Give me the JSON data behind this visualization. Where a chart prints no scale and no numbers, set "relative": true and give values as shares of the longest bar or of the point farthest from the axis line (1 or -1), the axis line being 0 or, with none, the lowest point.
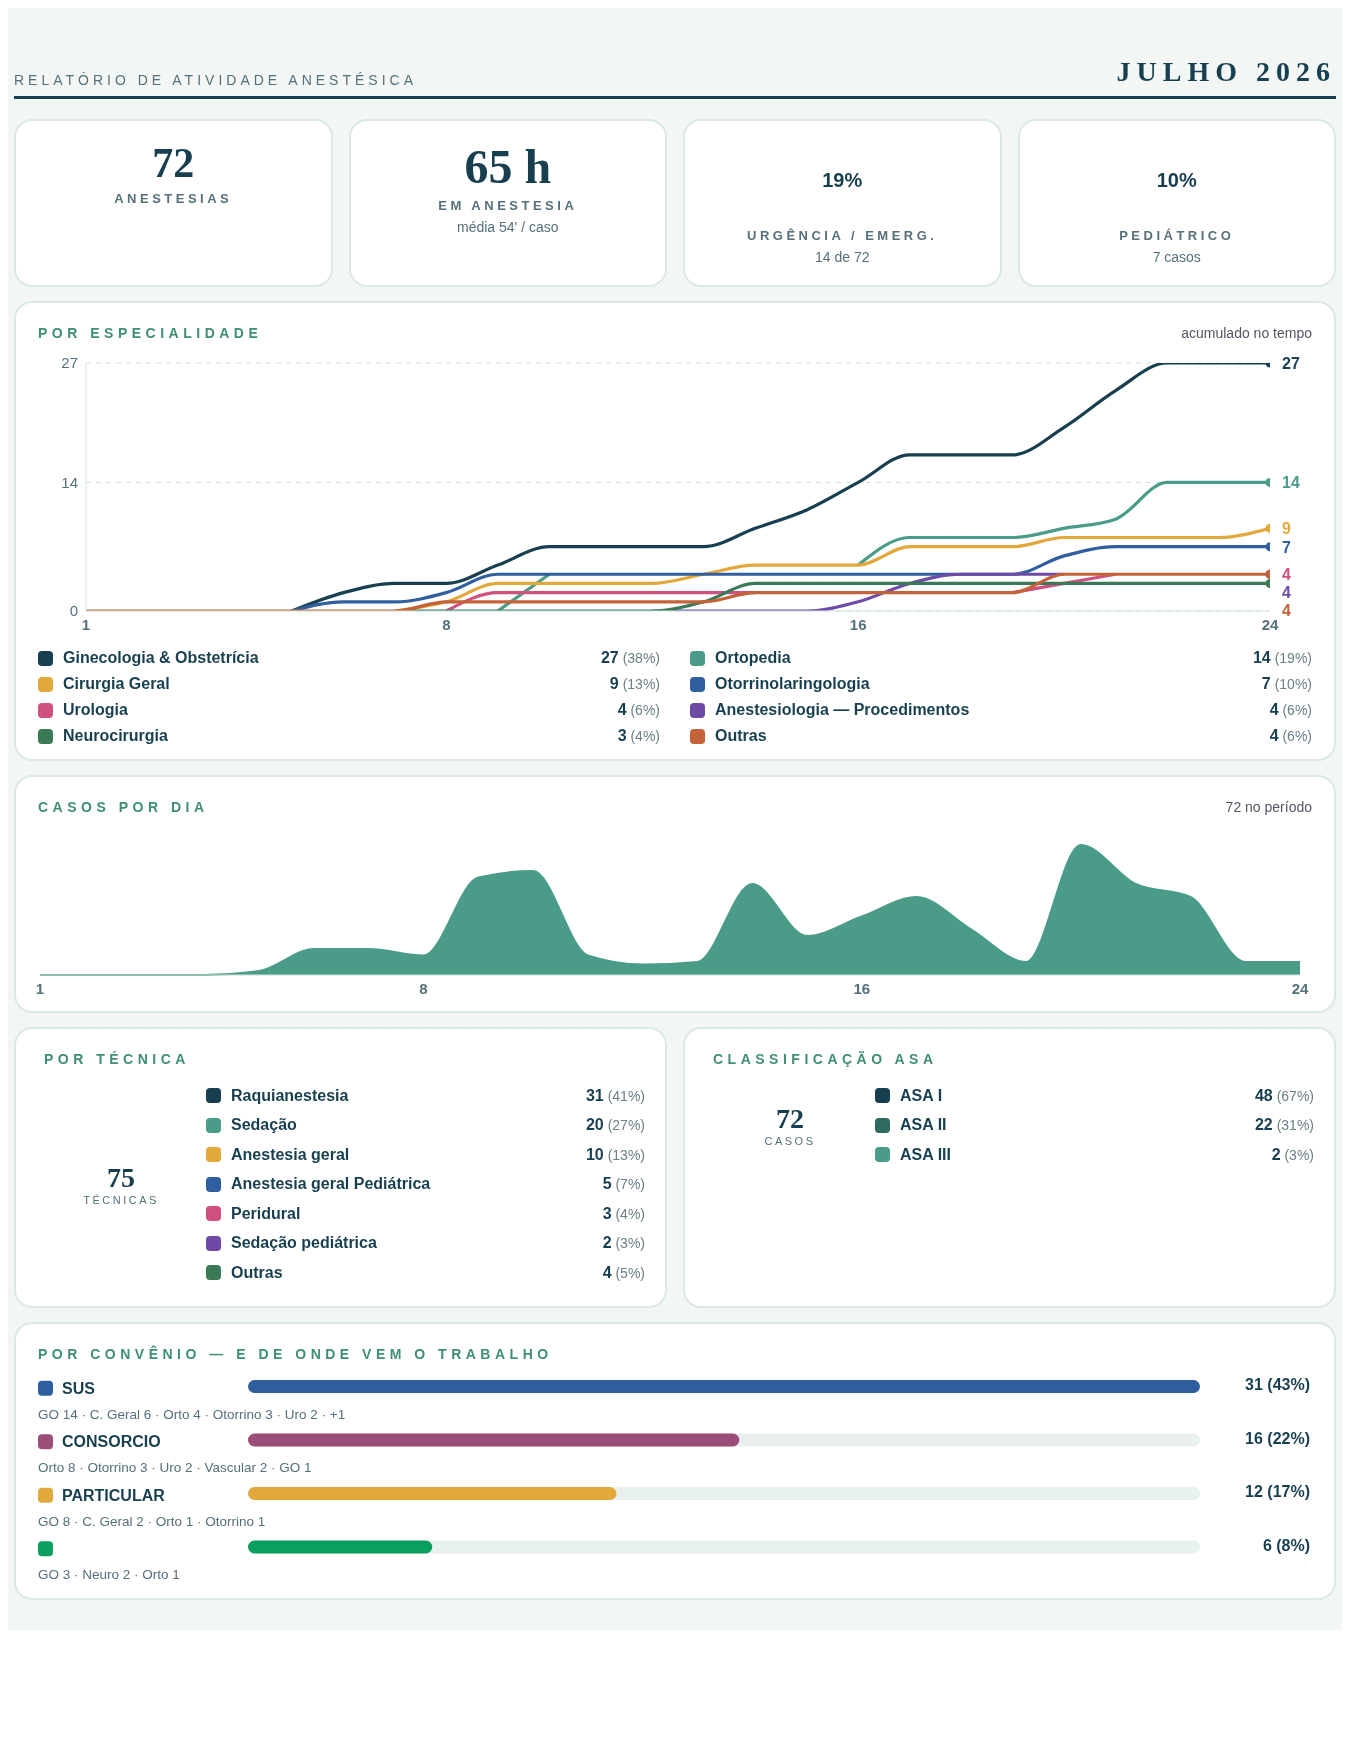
{
  "chart_data": [
    {
      "type": "other",
      "title": "RELATÓRIO DE ATIVIDADE ANESTÉSICA",
      "subtitle": "JULHO 2026",
      "categories": [
        "ANESTESIAS",
        "EM ANESTESIA",
        "URGÊNCIA / EMERG.",
        "PEDIÁTRICO"
      ],
      "value_labels": [
        "72",
        "65 h",
        "19%",
        "10%"
      ],
      "annotations": [
        "média 54' / caso",
        "14 de 72",
        "7 casos"
      ]
    },
    {
      "type": "line",
      "title": "POR ESPECIALIDADE",
      "subtitle": "acumulado no tempo",
      "x": [
        1,
        2,
        3,
        4,
        5,
        6,
        7,
        8,
        9,
        10,
        11,
        12,
        13,
        14,
        15,
        16,
        17,
        18,
        19,
        20,
        21,
        22,
        23,
        24
      ],
      "xlim": [
        1,
        24
      ],
      "xticks": [
        1,
        8,
        16,
        24
      ],
      "ylim": [
        0,
        27
      ],
      "yticks": [
        0,
        14,
        27
      ],
      "grid": "y",
      "legend": "bottom",
      "line_style": "solid",
      "series": [
        {
          "name": "Ginecologia & Obstetrícia",
          "color": "#173f4f",
          "values": [
            null,
            null,
            null,
            null,
            0,
            2,
            3,
            3,
            5,
            7,
            7,
            7,
            7,
            9,
            11,
            14,
            17,
            17,
            17,
            20,
            24,
            27,
            27,
            27
          ],
          "value_labels": [
            null,
            null,
            null,
            null,
            null,
            null,
            null,
            null,
            null,
            null,
            null,
            null,
            null,
            null,
            null,
            null,
            null,
            null,
            null,
            null,
            null,
            null,
            null,
            "27"
          ]
        },
        {
          "name": "Ortopedia",
          "color": "#4a9c88",
          "values": [
            null,
            null,
            null,
            null,
            null,
            null,
            null,
            null,
            0,
            4,
            null,
            null,
            null,
            null,
            null,
            5,
            8,
            8,
            8,
            9,
            10,
            14,
            14,
            14
          ],
          "value_labels": [
            null,
            null,
            null,
            null,
            null,
            null,
            null,
            null,
            null,
            null,
            null,
            null,
            null,
            null,
            null,
            null,
            null,
            null,
            null,
            null,
            null,
            null,
            null,
            "14"
          ]
        },
        {
          "name": "Cirurgia Geral",
          "color": "#e3a83c",
          "values": [
            null,
            null,
            null,
            null,
            null,
            null,
            0,
            1,
            3,
            3,
            3,
            3,
            4,
            5,
            5,
            5,
            7,
            7,
            7,
            8,
            8,
            8,
            8,
            9
          ],
          "value_labels": [
            null,
            null,
            null,
            null,
            null,
            null,
            null,
            null,
            null,
            null,
            null,
            null,
            null,
            null,
            null,
            null,
            null,
            null,
            null,
            null,
            null,
            null,
            null,
            "9"
          ]
        },
        {
          "name": "Otorrinolaringologia",
          "color": "#2f5f9e",
          "values": [
            null,
            null,
            null,
            null,
            0,
            1,
            1,
            2,
            4,
            4,
            4,
            4,
            4,
            4,
            4,
            4,
            4,
            4,
            4,
            6,
            7,
            7,
            7,
            7
          ],
          "value_labels": [
            null,
            null,
            null,
            null,
            null,
            null,
            null,
            null,
            null,
            null,
            null,
            null,
            null,
            null,
            null,
            null,
            null,
            null,
            null,
            null,
            null,
            null,
            null,
            "7"
          ]
        },
        {
          "name": "Urologia",
          "color": "#d0517f",
          "values": [
            null,
            null,
            null,
            null,
            null,
            null,
            null,
            0,
            2,
            2,
            2,
            2,
            2,
            2,
            null,
            null,
            null,
            null,
            2,
            3,
            4,
            null,
            null,
            4
          ],
          "value_labels": [
            null,
            null,
            null,
            null,
            null,
            null,
            null,
            null,
            null,
            null,
            null,
            null,
            null,
            null,
            null,
            null,
            null,
            null,
            null,
            null,
            null,
            null,
            null,
            "4"
          ]
        },
        {
          "name": "Anestesiologia — Procedimentos",
          "color": "#6e4aa6",
          "values": [
            null,
            null,
            null,
            null,
            null,
            null,
            null,
            null,
            null,
            null,
            null,
            0,
            0,
            0,
            0,
            1,
            3,
            4,
            4,
            4,
            null,
            null,
            null,
            4
          ],
          "value_labels": [
            null,
            null,
            null,
            null,
            null,
            null,
            null,
            null,
            null,
            null,
            null,
            null,
            null,
            null,
            null,
            null,
            null,
            null,
            null,
            null,
            null,
            null,
            null,
            "4"
          ]
        },
        {
          "name": "Neurocirurgia",
          "color": "#3b7a57",
          "values": [
            null,
            null,
            null,
            null,
            null,
            null,
            0,
            0,
            0,
            0,
            0,
            0,
            1,
            3,
            3,
            3,
            3,
            3,
            3,
            3,
            3,
            3,
            3,
            3
          ]
        },
        {
          "name": "Outras",
          "color": "#c4623a",
          "values": [
            0,
            0,
            0,
            0,
            0,
            0,
            0,
            1,
            1,
            1,
            1,
            1,
            1,
            2,
            2,
            2,
            2,
            2,
            2,
            4,
            4,
            4,
            4,
            4
          ],
          "value_labels": [
            null,
            null,
            null,
            null,
            null,
            null,
            null,
            null,
            null,
            null,
            null,
            null,
            null,
            null,
            null,
            null,
            null,
            null,
            null,
            null,
            null,
            null,
            null,
            "4"
          ]
        }
      ],
      "annotations": [
        "27 (38%)",
        "14 (19%)",
        "9 (13%)",
        "7 (10%)",
        "4 (6%)",
        "4 (6%)",
        "3 (4%)",
        "4 (6%)"
      ]
    },
    {
      "type": "area",
      "title": "CASOS POR DIA",
      "subtitle": "72 no período",
      "relative": true,
      "color": "#4a9c88",
      "x": [
        1,
        2,
        3,
        4,
        5,
        6,
        7,
        8,
        9,
        10,
        11,
        12,
        13,
        14,
        15,
        16,
        17,
        18,
        19,
        20,
        21,
        22,
        23,
        24
      ],
      "xlim": [
        1,
        24
      ],
      "xticks": [
        1,
        8,
        16,
        24
      ],
      "values": [
        0,
        0,
        0,
        0,
        0.03,
        0.2,
        0.2,
        0.15,
        0.75,
        0.8,
        0.15,
        0.08,
        0.1,
        0.7,
        0.3,
        0.45,
        0.6,
        0.35,
        0.1,
        1,
        0.7,
        0.6,
        0.1,
        0.1
      ]
    },
    {
      "type": "other",
      "title": "POR TÉCNICA",
      "categories": [
        "Raquianestesia",
        "Sedação",
        "Anestesia geral",
        "Anestesia geral Pediátrica",
        "Peridural",
        "Sedação pediátrica",
        "Outras"
      ],
      "value_labels": [
        "31 (41%)",
        "20 (27%)",
        "10 (13%)",
        "5 (7%)",
        "3 (4%)",
        "2 (3%)",
        "4 (5%)"
      ],
      "colors": [
        "#173f4f",
        "#4a9c88",
        "#e3a83c",
        "#2f5f9e",
        "#d0517f",
        "#6e4aa6",
        "#3b7a57"
      ],
      "annotations": [
        "75",
        "TÉCNICAS"
      ]
    },
    {
      "type": "other",
      "title": "CLASSIFICAÇÃO ASA",
      "categories": [
        "ASA I",
        "ASA II",
        "ASA III"
      ],
      "value_labels": [
        "48 (67%)",
        "22 (31%)",
        "2 (3%)"
      ],
      "colors": [
        "#173f4f",
        "#2e6b5e",
        "#4a9c88"
      ],
      "annotations": [
        "72",
        "CASOS"
      ]
    },
    {
      "type": "bar",
      "orientation": "horizontal",
      "title": "POR CONVÊNIO — E DE ONDE VEM O TRABALHO",
      "categories": [
        "SUS",
        "CONSORCIO",
        "PARTICULAR",
        null
      ],
      "values": [
        31,
        16,
        12,
        6
      ],
      "colors": [
        "#2f5f9e",
        "#9b4f78",
        "#e3a83c",
        "#0a9e5f"
      ],
      "xlim": [
        0,
        31
      ],
      "value_labels": [
        "31 (43%)",
        "16 (22%)",
        "12 (17%)",
        "6 (8%)"
      ],
      "annotations": [
        "GO 14 · C. Geral 6 · Orto 4 · Otorrino 3 · Uro 2 · +1",
        "Orto 8 · Otorrino 3 · Uro 2 · Vascular 2 · GO 1",
        "GO 8 · C. Geral 2 · Orto 1 · Otorrino 1",
        "GO 3 · Neuro 2 · Orto 1"
      ]
    }
  ]
}
